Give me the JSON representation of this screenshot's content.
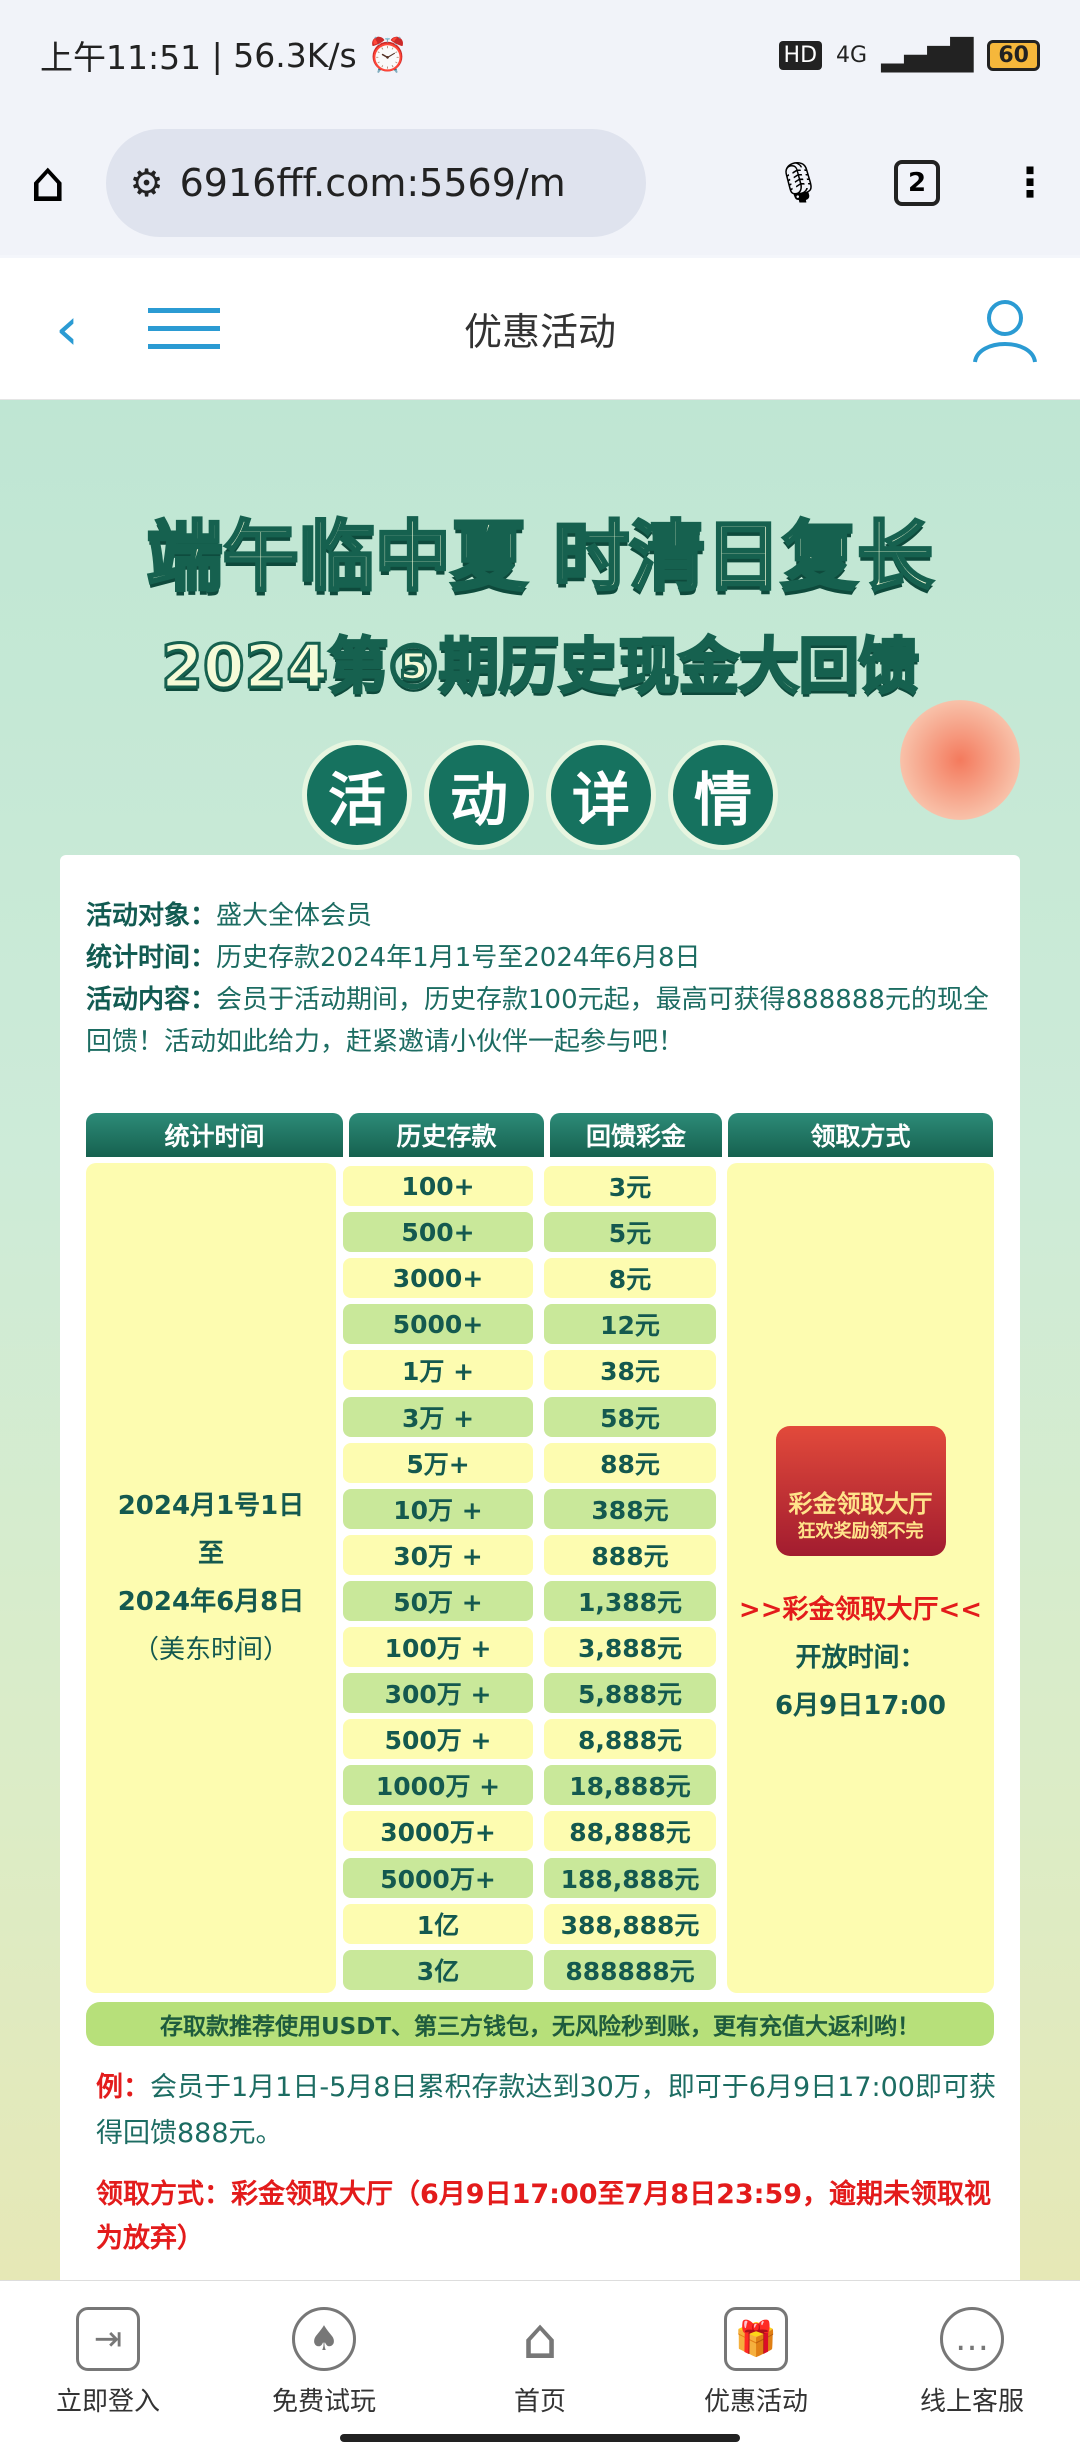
{
  "status_bar": {
    "time": "上午11:51",
    "speed": "56.3K/s",
    "network": "4G",
    "hd": "HD",
    "battery": "60"
  },
  "browser": {
    "url": "6916fff.com:5569/m",
    "tab_count": "2"
  },
  "header": {
    "title": "优惠活动"
  },
  "banner": {
    "title1": "端午临中夏 时清日复长",
    "title2": "2024第⑤期历史现金大回馈",
    "circles": [
      "活",
      "动",
      "详",
      "情"
    ]
  },
  "info": {
    "target_label": "活动对象：",
    "target": "盛大全体会员",
    "period_label": "统计时间：",
    "period": "历史存款2024年1月1号至2024年6月8日",
    "content_label": "活动内容：",
    "content": "会员于活动期间，历史存款100元起，最高可获得888888元的现全回馈！活动如此给力，赶紧邀请小伙伴一起参与吧！"
  },
  "table": {
    "headers": [
      "统计时间",
      "历史存款",
      "回馈彩金",
      "领取方式"
    ],
    "period_lines": [
      "2024月1号1日",
      "至",
      "2024年6月8日",
      "（美东时间）"
    ],
    "rows": [
      [
        "100+",
        "3元"
      ],
      [
        "500+",
        "5元"
      ],
      [
        "3000+",
        "8元"
      ],
      [
        "5000+",
        "12元"
      ],
      [
        "1万 +",
        "38元"
      ],
      [
        "3万 +",
        "58元"
      ],
      [
        "5万+",
        "88元"
      ],
      [
        "10万 +",
        "388元"
      ],
      [
        "30万 +",
        "888元"
      ],
      [
        "50万 +",
        "1,388元"
      ],
      [
        "100万 +",
        "3,888元"
      ],
      [
        "300万 +",
        "5,888元"
      ],
      [
        "500万 +",
        "8,888元"
      ],
      [
        "1000万 +",
        "18,888元"
      ],
      [
        "3000万+",
        "88,888元"
      ],
      [
        "5000万+",
        "188,888元"
      ],
      [
        "1亿",
        "388,888元"
      ],
      [
        "3亿",
        "888888元"
      ]
    ],
    "badge_line1": "彩金领取大厅",
    "badge_line2": "狂欢奖励领不完",
    "hall_link": ">>彩金领取大厅<<",
    "open_label": "开放时间：",
    "open_time": "6月9日17:00"
  },
  "tip": "存取款推荐使用USDT、第三方钱包，无风险秒到账，更有充值大返利哟！",
  "example": {
    "label": "例：",
    "text": "会员于1月1日-5月8日累积存款达到30万，即可于6月9日17:00即可获得回馈888元。"
  },
  "claim": "领取方式：彩金领取大厅（6月9日17:00至7月8日23:59，逾期未领取视为放弃）",
  "bottom_nav": [
    {
      "label": "立即登入",
      "icon": "login-icon"
    },
    {
      "label": "免费试玩",
      "icon": "spade-icon"
    },
    {
      "label": "首页",
      "icon": "home-icon"
    },
    {
      "label": "优惠活动",
      "icon": "gift-icon"
    },
    {
      "label": "线上客服",
      "icon": "chat-icon"
    }
  ],
  "colors": {
    "accent": "#2b9bd3",
    "dark_green": "#16614f",
    "cell_yellow": "#fdfcb0",
    "cell_green": "#c9e89a",
    "red": "#e31b1b"
  }
}
